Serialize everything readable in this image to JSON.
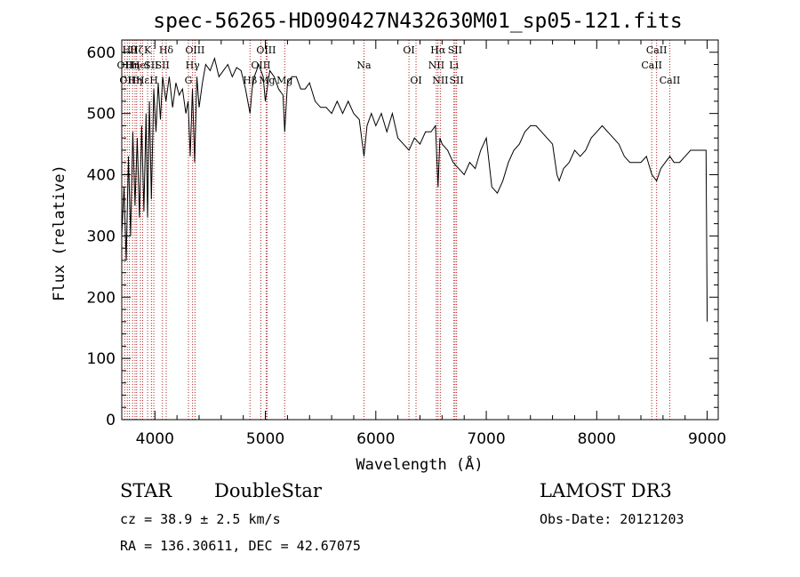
{
  "chart_data": {
    "type": "line",
    "title": "spec-56265-HD090427N432630M01_sp05-121.fits",
    "xlabel": "Wavelength (Å)",
    "ylabel": "Flux (relative)",
    "xlim": [
      3700,
      9100
    ],
    "ylim": [
      0,
      620
    ],
    "xticks": [
      4000,
      5000,
      6000,
      7000,
      8000,
      9000
    ],
    "yticks": [
      0,
      100,
      200,
      300,
      400,
      500,
      600
    ],
    "grid": false,
    "series": [
      {
        "x": [
          3700,
          3720,
          3740,
          3760,
          3780,
          3800,
          3820,
          3840,
          3860,
          3880,
          3900,
          3920,
          3933,
          3950,
          3968,
          3990,
          4010,
          4030,
          4050,
          4070,
          4100,
          4130,
          4160,
          4190,
          4220,
          4250,
          4280,
          4300,
          4320,
          4340,
          4360,
          4380,
          4400,
          4430,
          4460,
          4500,
          4540,
          4580,
          4620,
          4660,
          4700,
          4740,
          4780,
          4820,
          4861,
          4880,
          4900,
          4940,
          4980,
          5000,
          5040,
          5080,
          5120,
          5160,
          5175,
          5200,
          5240,
          5280,
          5320,
          5360,
          5400,
          5450,
          5500,
          5550,
          5600,
          5650,
          5700,
          5750,
          5800,
          5850,
          5893,
          5920,
          5960,
          6000,
          6050,
          6100,
          6150,
          6200,
          6250,
          6300,
          6350,
          6400,
          6450,
          6500,
          6540,
          6563,
          6580,
          6600,
          6650,
          6700,
          6750,
          6800,
          6850,
          6900,
          6950,
          7000,
          7050,
          7100,
          7150,
          7200,
          7250,
          7300,
          7350,
          7400,
          7450,
          7500,
          7550,
          7600,
          7640,
          7660,
          7700,
          7750,
          7800,
          7850,
          7900,
          7950,
          8000,
          8050,
          8100,
          8150,
          8200,
          8250,
          8300,
          8350,
          8400,
          8450,
          8500,
          8542,
          8580,
          8620,
          8662,
          8700,
          8750,
          8800,
          8850,
          8900,
          8950,
          8990,
          9000
        ],
        "values": [
          300,
          380,
          260,
          430,
          300,
          470,
          350,
          460,
          330,
          480,
          340,
          500,
          330,
          520,
          360,
          540,
          470,
          550,
          490,
          560,
          520,
          560,
          510,
          550,
          530,
          540,
          500,
          520,
          430,
          540,
          420,
          560,
          510,
          550,
          580,
          570,
          590,
          560,
          570,
          580,
          560,
          575,
          570,
          540,
          500,
          540,
          560,
          580,
          560,
          520,
          570,
          560,
          540,
          530,
          470,
          550,
          560,
          560,
          540,
          540,
          550,
          520,
          510,
          510,
          500,
          520,
          500,
          520,
          500,
          490,
          430,
          480,
          500,
          480,
          500,
          470,
          500,
          460,
          450,
          440,
          460,
          450,
          470,
          470,
          480,
          380,
          460,
          450,
          440,
          420,
          410,
          400,
          420,
          410,
          440,
          460,
          380,
          370,
          390,
          420,
          440,
          450,
          470,
          480,
          480,
          470,
          460,
          450,
          400,
          390,
          410,
          420,
          440,
          430,
          440,
          460,
          470,
          480,
          470,
          460,
          450,
          430,
          420,
          420,
          420,
          430,
          400,
          390,
          410,
          420,
          430,
          420,
          420,
          430,
          440,
          440,
          440,
          440,
          160
        ]
      }
    ],
    "line_markers": [
      {
        "wl": 3727,
        "row": 1,
        "label": "OII"
      },
      {
        "wl": 3750,
        "row": 2,
        "label": "OII"
      },
      {
        "wl": 3770,
        "row": 0,
        "label": "Hθ"
      },
      {
        "wl": 3798,
        "row": 1,
        "label": "Hη"
      },
      {
        "wl": 3820,
        "row": 2,
        "label": "Hη"
      },
      {
        "wl": 3835,
        "row": 0,
        "label": "Hζ"
      },
      {
        "wl": 3869,
        "row": 1,
        "label": "HeI"
      },
      {
        "wl": 3889,
        "row": 2,
        "label": "Hε"
      },
      {
        "wl": 3934,
        "row": 0,
        "label": "K"
      },
      {
        "wl": 3968,
        "row": 1,
        "label": "SII"
      },
      {
        "wl": 3990,
        "row": 2,
        "label": "H"
      },
      {
        "wl": 4068,
        "row": 1,
        "label": "SII"
      },
      {
        "wl": 4102,
        "row": 0,
        "label": "Hδ"
      },
      {
        "wl": 4304,
        "row": 2,
        "label": "G"
      },
      {
        "wl": 4341,
        "row": 1,
        "label": "Hγ"
      },
      {
        "wl": 4363,
        "row": 0,
        "label": "OIII"
      },
      {
        "wl": 4861,
        "row": 2,
        "label": "Hβ"
      },
      {
        "wl": 4959,
        "row": 1,
        "label": "OIII"
      },
      {
        "wl": 5007,
        "row": 0,
        "label": "OIII"
      },
      {
        "wl": 5015,
        "row": 2,
        "label": "Mg"
      },
      {
        "wl": 5175,
        "row": 2,
        "label": "Mg"
      },
      {
        "wl": 5893,
        "row": 1,
        "label": "Na"
      },
      {
        "wl": 6300,
        "row": 0,
        "label": "OI"
      },
      {
        "wl": 6364,
        "row": 2,
        "label": "OI"
      },
      {
        "wl": 6548,
        "row": 1,
        "label": "NII"
      },
      {
        "wl": 6563,
        "row": 0,
        "label": "Hα"
      },
      {
        "wl": 6584,
        "row": 2,
        "label": "NII"
      },
      {
        "wl": 6707,
        "row": 1,
        "label": "Li"
      },
      {
        "wl": 6717,
        "row": 0,
        "label": "SII"
      },
      {
        "wl": 6731,
        "row": 2,
        "label": "SII"
      },
      {
        "wl": 8498,
        "row": 1,
        "label": "CaII"
      },
      {
        "wl": 8542,
        "row": 0,
        "label": "CaII"
      },
      {
        "wl": 8662,
        "row": 2,
        "label": "CaII"
      }
    ]
  },
  "info": {
    "object_class": "STAR",
    "subclass": "DoubleStar",
    "survey": "LAMOST DR3",
    "cz": "cz = 38.9 ± 2.5 km/s",
    "obs_date": "Obs-Date: 20121203",
    "coords": "RA = 136.30611, DEC =  42.67075"
  }
}
